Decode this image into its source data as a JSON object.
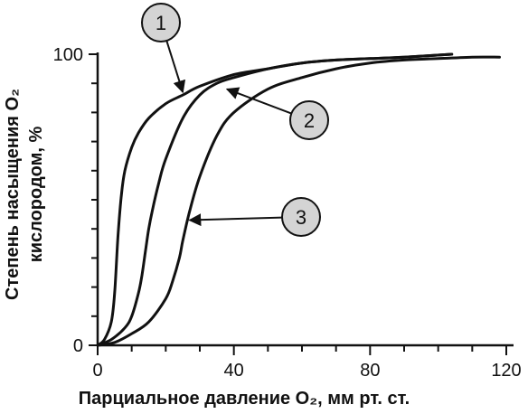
{
  "chart_data": {
    "type": "line",
    "xlabel": "Парциальное давление O₂, мм рт. ст.",
    "ylabel_line1": "Степень насыщения O₂",
    "ylabel_line2": "кислородом, %",
    "xlim": [
      0,
      120
    ],
    "ylim": [
      0,
      100
    ],
    "x_ticks": [
      "0",
      "40",
      "80",
      "120"
    ],
    "y_ticks": [
      "0",
      "100"
    ],
    "grid": false,
    "series": [
      {
        "callout": "1",
        "x": [
          0,
          2,
          4,
          5,
          6,
          7,
          8,
          10,
          12,
          15,
          20,
          25,
          30,
          40,
          50,
          60,
          70,
          80,
          90,
          104
        ],
        "y": [
          0,
          2,
          8,
          18,
          38,
          52,
          60,
          68,
          73,
          78,
          83,
          86,
          89,
          93,
          95,
          97,
          98,
          98.5,
          99,
          100
        ]
      },
      {
        "callout": "2",
        "x": [
          0,
          4,
          8,
          10,
          12,
          13,
          14,
          15,
          16,
          18,
          20,
          25,
          30,
          35,
          40,
          50,
          60,
          70,
          80,
          90,
          104
        ],
        "y": [
          0,
          2,
          6,
          10,
          18,
          24,
          32,
          40,
          46,
          56,
          64,
          78,
          86,
          90,
          92,
          95,
          97,
          98,
          98.5,
          99,
          100
        ]
      },
      {
        "callout": "3",
        "x": [
          0,
          5,
          10,
          15,
          20,
          22,
          24,
          25,
          27,
          30,
          35,
          40,
          50,
          60,
          70,
          80,
          90,
          100,
          110,
          118
        ],
        "y": [
          0,
          1,
          4,
          8,
          16,
          22,
          30,
          36,
          46,
          58,
          72,
          80,
          88,
          92,
          95,
          97,
          98,
          98.5,
          99,
          99
        ]
      }
    ],
    "callouts": [
      {
        "label": "1",
        "series_index": 0,
        "point_x": 25,
        "point_y": 87
      },
      {
        "label": "2",
        "series_index": 1,
        "point_x": 38,
        "point_y": 88
      },
      {
        "label": "3",
        "series_index": 2,
        "point_x": 27,
        "point_y": 43
      }
    ]
  }
}
